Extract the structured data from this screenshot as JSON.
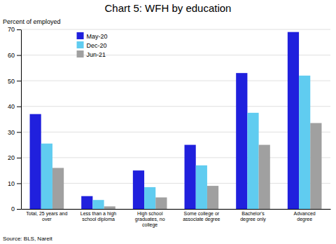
{
  "chart_data": {
    "type": "bar",
    "title": "Chart 5: WFH by education",
    "ylabel": "Percent of employed",
    "annotations": [
      "Source: BLS, Nareit"
    ],
    "categories": [
      "Total, 25 years and\nover",
      "Less than a high\nschool diploma",
      "High school\ngraduates, no\ncollege",
      "Some college or\nassociate degree",
      "Bachelor's\ndegree only",
      "Advanced\ndegree"
    ],
    "series": [
      {
        "name": "May-20",
        "color": "#2020dd",
        "values": [
          37,
          5,
          15,
          25,
          53,
          69
        ]
      },
      {
        "name": "Dec-20",
        "color": "#60ccf0",
        "values": [
          25.5,
          3.5,
          8.5,
          17,
          37.5,
          52
        ]
      },
      {
        "name": "Jun-21",
        "color": "#a0a0a0",
        "values": [
          16,
          1,
          4.5,
          9,
          25,
          33.5
        ]
      }
    ],
    "ylim": [
      0,
      70
    ],
    "yticks": [
      0,
      10,
      20,
      30,
      40,
      50,
      60,
      70
    ],
    "grid": true,
    "legend": "upper left"
  }
}
